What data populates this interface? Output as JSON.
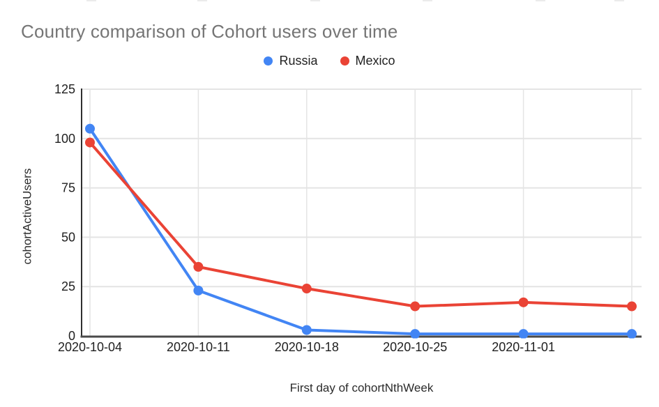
{
  "chart_data": {
    "type": "line",
    "title": "Country comparison of Cohort users over time",
    "categories": [
      "2020-10-04",
      "2020-10-11",
      "2020-10-18",
      "2020-10-25",
      "2020-11-01",
      ""
    ],
    "series": [
      {
        "name": "Russia",
        "color": "#4285F4",
        "values": [
          105,
          23,
          3,
          1,
          1,
          1
        ]
      },
      {
        "name": "Mexico",
        "color": "#EA4335",
        "values": [
          98,
          35,
          24,
          15,
          17,
          15
        ]
      }
    ],
    "xlabel": "First day of cohortNthWeek",
    "ylabel": "cohortActiveUsers",
    "ylim": [
      0,
      125
    ],
    "yticks": [
      0,
      25,
      50,
      75,
      100,
      125
    ],
    "grid": true,
    "legend_position": "top"
  },
  "style": {
    "background": "#ffffff",
    "title_color": "#757575",
    "tick_label_color": "#1f1f1f",
    "axis_title_color": "#2b2b2b",
    "gridline_color": "#e4e4e4",
    "y_axis_line_color": "#2f2f2f",
    "x_axis_line_color": "#4a4a4a",
    "artifact_color": "#ebebeb"
  }
}
